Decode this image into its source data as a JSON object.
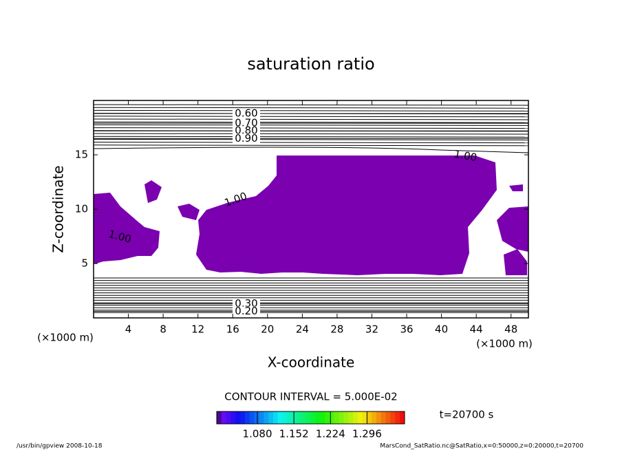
{
  "chart_data": {
    "type": "contour",
    "title": "saturation ratio",
    "x_label": "X-coordinate",
    "y_label": "Z-coordinate",
    "x_unit": "(×1000 m)",
    "y_unit": "(×1000 m)",
    "xlim": [
      0,
      50
    ],
    "xticks": [
      4,
      8,
      12,
      16,
      20,
      24,
      28,
      32,
      36,
      40,
      44,
      48
    ],
    "ylim": [
      0,
      20
    ],
    "yticks": [
      5,
      10,
      15
    ],
    "fill_color": "#7a00b0",
    "contours": [
      {
        "value": 0.6,
        "label": "0.60",
        "z": 18.8
      },
      {
        "value": 0.7,
        "label": "0.70",
        "z": 17.9
      },
      {
        "value": 0.8,
        "label": "0.80",
        "z": 17.2
      },
      {
        "value": 0.9,
        "label": "0.90",
        "z": 16.5
      },
      {
        "value": 0.3,
        "label": "0.30",
        "z": 1.3
      },
      {
        "value": 0.2,
        "label": "0.20",
        "z": 0.6
      }
    ],
    "saturation_label": "1.00",
    "contour_interval": "CONTOUR INTERVAL = 5.000E-02",
    "time_label": "t=20700 s",
    "clim": [
      1.0,
      1.37
    ],
    "cticks": [
      {
        "value": 1.08,
        "label": "1.080"
      },
      1.152,
      1.224,
      1.296
    ],
    "footer_left": "/usr/bin/gpview   2008-10-18",
    "footer_right": "MarsCond_SatRatio.nc@SatRatio,x=0:50000,z=0:20000,t=20700"
  }
}
